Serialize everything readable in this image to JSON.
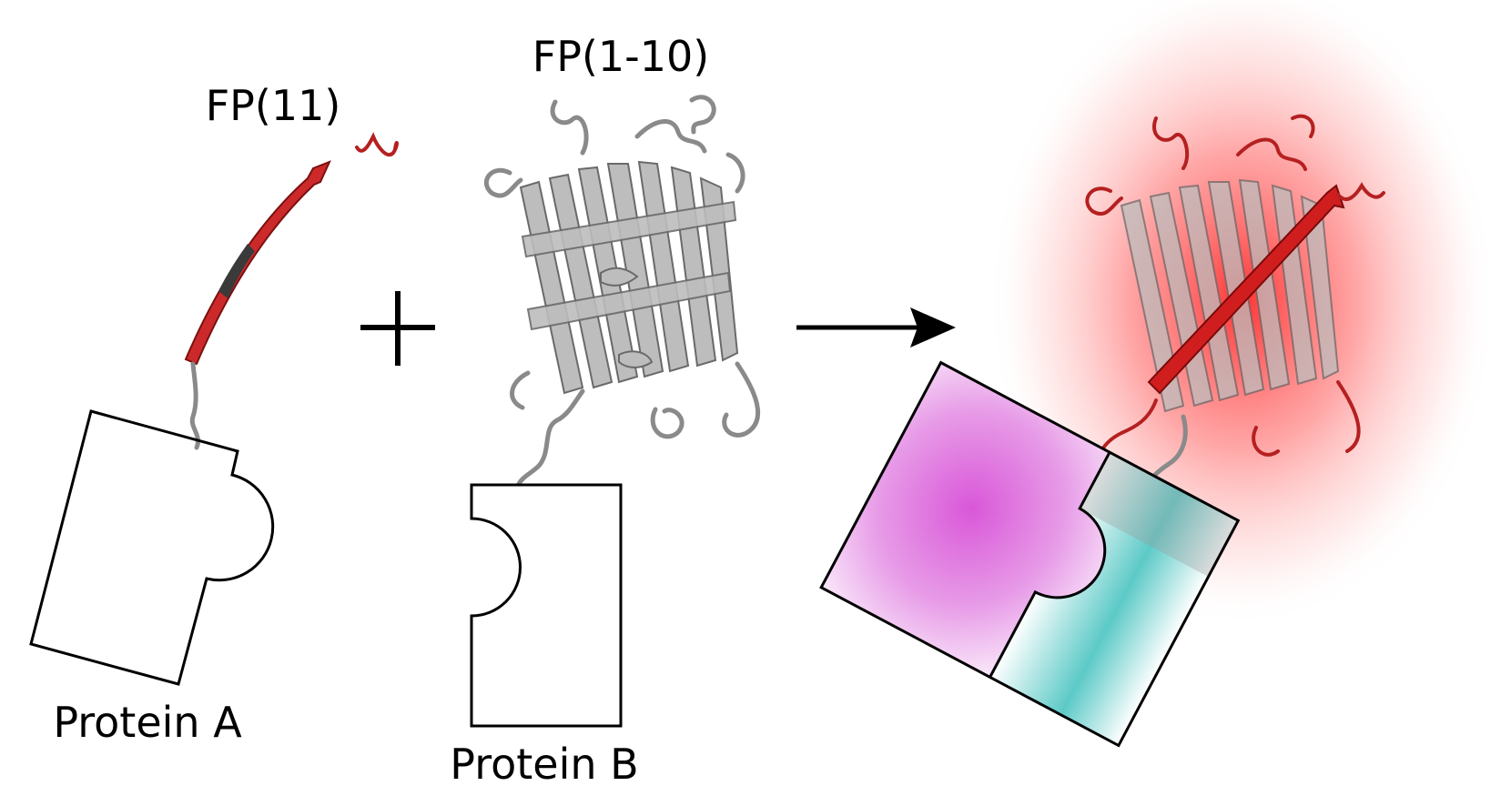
{
  "labels": {
    "fp11": "FP(11)",
    "fp110": "FP(1-10)",
    "protein_a": "Protein A",
    "protein_b": "Protein B"
  },
  "symbols": {
    "plus": "plus-sign",
    "arrow": "right-arrow"
  },
  "colors": {
    "protein_a": "#d957d9",
    "protein_b": "#5ccac7",
    "fp11_strand": "#b82222",
    "fp110_barrel": "#a8a8a8",
    "fluorescence_glow": "#ff3333"
  }
}
